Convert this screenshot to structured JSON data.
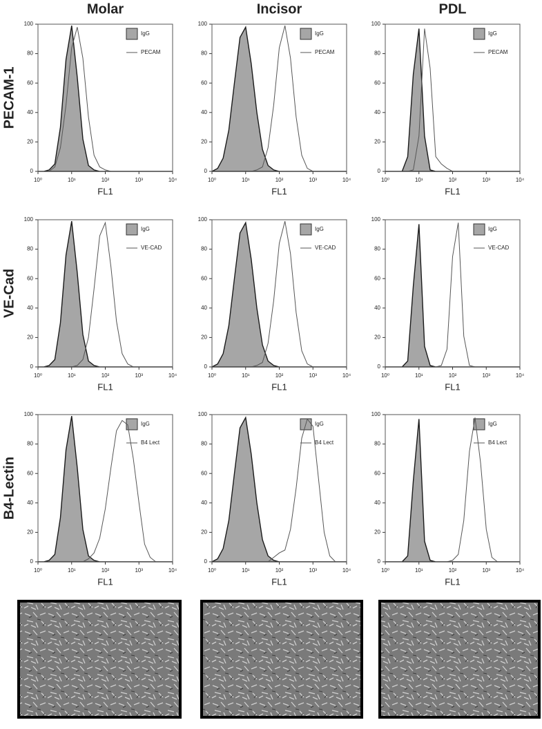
{
  "column_titles": [
    "Molar",
    "Incisor",
    "PDL"
  ],
  "row_labels": [
    "PECAM-1",
    "VE-Cad",
    "B4-Lectin"
  ],
  "chart_data": [
    {
      "type": "line",
      "xscale": "log",
      "xlabel": "FL1",
      "xlim": [
        1,
        10000
      ],
      "ylim": [
        0,
        100
      ],
      "yticks": [
        0,
        20,
        40,
        60,
        80,
        100
      ],
      "xticks": [
        {
          "value": 1,
          "label": "10⁰"
        },
        {
          "value": 10,
          "label": "10¹"
        },
        {
          "value": 100,
          "label": "10²"
        },
        {
          "value": 1000,
          "label": "10³"
        },
        {
          "value": 10000,
          "label": "10⁴"
        }
      ],
      "x": [
        1,
        1.47,
        2.15,
        3.16,
        4.64,
        6.81,
        10,
        14.7,
        21.5,
        31.6,
        46.4,
        68.1,
        100,
        147,
        215,
        316,
        464,
        681,
        1000,
        1468,
        2154,
        3162,
        4642,
        6813,
        10000
      ],
      "series": [
        {
          "name": "IgG",
          "color": "#a6a6a6",
          "filled": true,
          "values": [
            0,
            0,
            1,
            5,
            30,
            76,
            99,
            64,
            22,
            4,
            1,
            0,
            0,
            0,
            0,
            0,
            0,
            0,
            0,
            0,
            0,
            0,
            0,
            0,
            0
          ]
        },
        {
          "name": "PECAM",
          "color": "#555555",
          "filled": false,
          "values": [
            0,
            0,
            0,
            3,
            16,
            45,
            84,
            98,
            77,
            37,
            11,
            3,
            1,
            0,
            0,
            0,
            0,
            0,
            0,
            0,
            0,
            0,
            0,
            0,
            0
          ]
        }
      ]
    },
    {
      "type": "line",
      "xscale": "log",
      "xlabel": "FL1",
      "xlim": [
        1,
        10000
      ],
      "ylim": [
        0,
        100
      ],
      "yticks": [
        0,
        20,
        40,
        60,
        80,
        100
      ],
      "xticks": [
        {
          "value": 1,
          "label": "10⁰"
        },
        {
          "value": 10,
          "label": "10¹"
        },
        {
          "value": 100,
          "label": "10²"
        },
        {
          "value": 1000,
          "label": "10³"
        },
        {
          "value": 10000,
          "label": "10⁴"
        }
      ],
      "x": [
        1,
        1.47,
        2.15,
        3.16,
        4.64,
        6.81,
        10,
        14.7,
        21.5,
        31.6,
        46.4,
        68.1,
        100,
        147,
        215,
        316,
        464,
        681,
        1000,
        1468,
        2154,
        3162,
        4642,
        6813,
        10000
      ],
      "series": [
        {
          "name": "IgG",
          "color": "#a6a6a6",
          "filled": true,
          "values": [
            0,
            2,
            9,
            28,
            60,
            91,
            98,
            73,
            40,
            15,
            4,
            1,
            0,
            0,
            0,
            0,
            0,
            0,
            0,
            0,
            0,
            0,
            0,
            0,
            0
          ]
        },
        {
          "name": "PECAM",
          "color": "#555555",
          "filled": false,
          "values": [
            0,
            0,
            0,
            0,
            0,
            0,
            0,
            0,
            1,
            3,
            16,
            45,
            84,
            99,
            77,
            37,
            11,
            2,
            0,
            0,
            0,
            0,
            0,
            0,
            0
          ]
        }
      ]
    },
    {
      "type": "line",
      "xscale": "log",
      "xlabel": "FL1",
      "xlim": [
        1,
        10000
      ],
      "ylim": [
        0,
        100
      ],
      "yticks": [
        0,
        20,
        40,
        60,
        80,
        100
      ],
      "xticks": [
        {
          "value": 1,
          "label": "10⁰"
        },
        {
          "value": 10,
          "label": "10¹"
        },
        {
          "value": 100,
          "label": "10²"
        },
        {
          "value": 1000,
          "label": "10³"
        },
        {
          "value": 10000,
          "label": "10⁴"
        }
      ],
      "x": [
        1,
        1.47,
        2.15,
        3.16,
        4.64,
        6.81,
        10,
        14.7,
        21.5,
        31.6,
        46.4,
        68.1,
        100,
        147,
        215,
        316,
        464,
        681,
        1000,
        1468,
        2154,
        3162,
        4642,
        6813,
        10000
      ],
      "series": [
        {
          "name": "IgG",
          "color": "#a6a6a6",
          "filled": true,
          "values": [
            0,
            0,
            0,
            0,
            10,
            66,
            97,
            24,
            1,
            0,
            0,
            0,
            0,
            0,
            0,
            0,
            0,
            0,
            0,
            0,
            0,
            0,
            0,
            0,
            0
          ]
        },
        {
          "name": "PECAM",
          "color": "#555555",
          "filled": false,
          "values": [
            0,
            0,
            0,
            0,
            0,
            1,
            24,
            97,
            70,
            10,
            5,
            2,
            0,
            0,
            0,
            0,
            0,
            0,
            0,
            0,
            0,
            0,
            0,
            0,
            0
          ]
        }
      ]
    },
    {
      "type": "line",
      "xscale": "log",
      "xlabel": "FL1",
      "xlim": [
        1,
        10000
      ],
      "ylim": [
        0,
        100
      ],
      "yticks": [
        0,
        20,
        40,
        60,
        80,
        100
      ],
      "xticks": [
        {
          "value": 1,
          "label": "10⁰"
        },
        {
          "value": 10,
          "label": "10¹"
        },
        {
          "value": 100,
          "label": "10²"
        },
        {
          "value": 1000,
          "label": "10³"
        },
        {
          "value": 10000,
          "label": "10⁴"
        }
      ],
      "x": [
        1,
        1.47,
        2.15,
        3.16,
        4.64,
        6.81,
        10,
        14.7,
        21.5,
        31.6,
        46.4,
        68.1,
        100,
        147,
        215,
        316,
        464,
        681,
        1000,
        1468,
        2154,
        3162,
        4642,
        6813,
        10000
      ],
      "series": [
        {
          "name": "IgG",
          "color": "#a6a6a6",
          "filled": true,
          "values": [
            0,
            0,
            1,
            5,
            30,
            76,
            99,
            64,
            22,
            4,
            1,
            0,
            0,
            0,
            0,
            0,
            0,
            0,
            0,
            0,
            0,
            0,
            0,
            0,
            0
          ]
        },
        {
          "name": "VE-CAD",
          "color": "#555555",
          "filled": false,
          "values": [
            0,
            0,
            0,
            0,
            0,
            0,
            0,
            1,
            5,
            20,
            53,
            89,
            98,
            68,
            31,
            9,
            2,
            0,
            0,
            0,
            0,
            0,
            0,
            0,
            0
          ]
        }
      ]
    },
    {
      "type": "line",
      "xscale": "log",
      "xlabel": "FL1",
      "xlim": [
        1,
        10000
      ],
      "ylim": [
        0,
        100
      ],
      "yticks": [
        0,
        20,
        40,
        60,
        80,
        100
      ],
      "xticks": [
        {
          "value": 1,
          "label": "10⁰"
        },
        {
          "value": 10,
          "label": "10¹"
        },
        {
          "value": 100,
          "label": "10²"
        },
        {
          "value": 1000,
          "label": "10³"
        },
        {
          "value": 10000,
          "label": "10⁴"
        }
      ],
      "x": [
        1,
        1.47,
        2.15,
        3.16,
        4.64,
        6.81,
        10,
        14.7,
        21.5,
        31.6,
        46.4,
        68.1,
        100,
        147,
        215,
        316,
        464,
        681,
        1000,
        1468,
        2154,
        3162,
        4642,
        6813,
        10000
      ],
      "series": [
        {
          "name": "IgG",
          "color": "#a6a6a6",
          "filled": true,
          "values": [
            0,
            2,
            9,
            28,
            60,
            91,
            98,
            73,
            40,
            15,
            4,
            1,
            0,
            0,
            0,
            0,
            0,
            0,
            0,
            0,
            0,
            0,
            0,
            0,
            0
          ]
        },
        {
          "name": "VE-CAD",
          "color": "#555555",
          "filled": false,
          "values": [
            0,
            0,
            0,
            0,
            0,
            0,
            0,
            0,
            1,
            3,
            16,
            45,
            84,
            99,
            77,
            37,
            11,
            2,
            0,
            0,
            0,
            0,
            0,
            0,
            0
          ]
        }
      ]
    },
    {
      "type": "line",
      "xscale": "log",
      "xlabel": "FL1",
      "xlim": [
        1,
        10000
      ],
      "ylim": [
        0,
        100
      ],
      "yticks": [
        0,
        20,
        40,
        60,
        80,
        100
      ],
      "xticks": [
        {
          "value": 1,
          "label": "10⁰"
        },
        {
          "value": 10,
          "label": "10¹"
        },
        {
          "value": 100,
          "label": "10²"
        },
        {
          "value": 1000,
          "label": "10³"
        },
        {
          "value": 10000,
          "label": "10⁴"
        }
      ],
      "x": [
        1,
        1.47,
        2.15,
        3.16,
        4.64,
        6.81,
        10,
        14.7,
        21.5,
        31.6,
        46.4,
        68.1,
        100,
        147,
        215,
        316,
        464,
        681,
        1000,
        1468,
        2154,
        3162,
        4642,
        6813,
        10000
      ],
      "series": [
        {
          "name": "IgG",
          "color": "#a6a6a6",
          "filled": true,
          "values": [
            0,
            0,
            0,
            0,
            4,
            55,
            97,
            14,
            1,
            0,
            0,
            0,
            0,
            0,
            0,
            0,
            0,
            0,
            0,
            0,
            0,
            0,
            0,
            0,
            0
          ]
        },
        {
          "name": "VE-CAD",
          "color": "#555555",
          "filled": false,
          "values": [
            0,
            0,
            0,
            0,
            0,
            0,
            0,
            0,
            0,
            0,
            1,
            12,
            75,
            98,
            21,
            1,
            0,
            0,
            0,
            0,
            0,
            0,
            0,
            0,
            0
          ]
        }
      ]
    },
    {
      "type": "line",
      "xscale": "log",
      "xlabel": "FL1",
      "xlim": [
        1,
        10000
      ],
      "ylim": [
        0,
        100
      ],
      "yticks": [
        0,
        20,
        40,
        60,
        80,
        100
      ],
      "xticks": [
        {
          "value": 1,
          "label": "10⁰"
        },
        {
          "value": 10,
          "label": "10¹"
        },
        {
          "value": 100,
          "label": "10²"
        },
        {
          "value": 1000,
          "label": "10³"
        },
        {
          "value": 10000,
          "label": "10⁴"
        }
      ],
      "x": [
        1,
        1.47,
        2.15,
        3.16,
        4.64,
        6.81,
        10,
        14.7,
        21.5,
        31.6,
        46.4,
        68.1,
        100,
        147,
        215,
        316,
        464,
        681,
        1000,
        1468,
        2154,
        3162,
        4642,
        6813,
        10000
      ],
      "series": [
        {
          "name": "IgG",
          "color": "#a6a6a6",
          "filled": true,
          "values": [
            0,
            0,
            1,
            5,
            30,
            76,
            99,
            64,
            22,
            4,
            1,
            0,
            0,
            0,
            0,
            0,
            0,
            0,
            0,
            0,
            0,
            0,
            0,
            0,
            0
          ]
        },
        {
          "name": "B4 Lect",
          "color": "#555555",
          "filled": false,
          "values": [
            0,
            0,
            0,
            0,
            0,
            0,
            0,
            0,
            0,
            2,
            6,
            16,
            36,
            64,
            89,
            96,
            93,
            70,
            40,
            12,
            3,
            0,
            0,
            0,
            0
          ]
        }
      ]
    },
    {
      "type": "line",
      "xscale": "log",
      "xlabel": "FL1",
      "xlim": [
        1,
        10000
      ],
      "ylim": [
        0,
        100
      ],
      "yticks": [
        0,
        20,
        40,
        60,
        80,
        100
      ],
      "xticks": [
        {
          "value": 1,
          "label": "10⁰"
        },
        {
          "value": 10,
          "label": "10¹"
        },
        {
          "value": 100,
          "label": "10²"
        },
        {
          "value": 1000,
          "label": "10³"
        },
        {
          "value": 10000,
          "label": "10⁴"
        }
      ],
      "x": [
        1,
        1.47,
        2.15,
        3.16,
        4.64,
        6.81,
        10,
        14.7,
        21.5,
        31.6,
        46.4,
        68.1,
        100,
        147,
        215,
        316,
        464,
        681,
        1000,
        1468,
        2154,
        3162,
        4642,
        6813,
        10000
      ],
      "series": [
        {
          "name": "IgG",
          "color": "#a6a6a6",
          "filled": true,
          "values": [
            0,
            2,
            9,
            28,
            60,
            91,
            98,
            73,
            40,
            15,
            4,
            1,
            0,
            0,
            0,
            0,
            0,
            0,
            0,
            0,
            0,
            0,
            0,
            0,
            0
          ]
        },
        {
          "name": "B4 Lect",
          "color": "#555555",
          "filled": false,
          "values": [
            0,
            0,
            0,
            0,
            0,
            0,
            0,
            0,
            0,
            0,
            0,
            3,
            6,
            8,
            22,
            50,
            84,
            97,
            92,
            56,
            20,
            4,
            0,
            0,
            0
          ]
        }
      ]
    },
    {
      "type": "line",
      "xscale": "log",
      "xlabel": "FL1",
      "xlim": [
        1,
        10000
      ],
      "ylim": [
        0,
        100
      ],
      "yticks": [
        0,
        20,
        40,
        60,
        80,
        100
      ],
      "xticks": [
        {
          "value": 1,
          "label": "10⁰"
        },
        {
          "value": 10,
          "label": "10¹"
        },
        {
          "value": 100,
          "label": "10²"
        },
        {
          "value": 1000,
          "label": "10³"
        },
        {
          "value": 10000,
          "label": "10⁴"
        }
      ],
      "x": [
        1,
        1.47,
        2.15,
        3.16,
        4.64,
        6.81,
        10,
        14.7,
        21.5,
        31.6,
        46.4,
        68.1,
        100,
        147,
        215,
        316,
        464,
        681,
        1000,
        1468,
        2154,
        3162,
        4642,
        6813,
        10000
      ],
      "series": [
        {
          "name": "IgG",
          "color": "#a6a6a6",
          "filled": true,
          "values": [
            0,
            0,
            0,
            0,
            4,
            55,
            97,
            14,
            1,
            0,
            0,
            0,
            0,
            0,
            0,
            0,
            0,
            0,
            0,
            0,
            0,
            0,
            0,
            0,
            0
          ]
        },
        {
          "name": "B4 Lect",
          "color": "#555555",
          "filled": false,
          "values": [
            0,
            0,
            0,
            0,
            0,
            0,
            0,
            0,
            0,
            0,
            0,
            0,
            1,
            5,
            28,
            75,
            98,
            67,
            22,
            3,
            0,
            0,
            0,
            0,
            0
          ]
        }
      ]
    }
  ]
}
